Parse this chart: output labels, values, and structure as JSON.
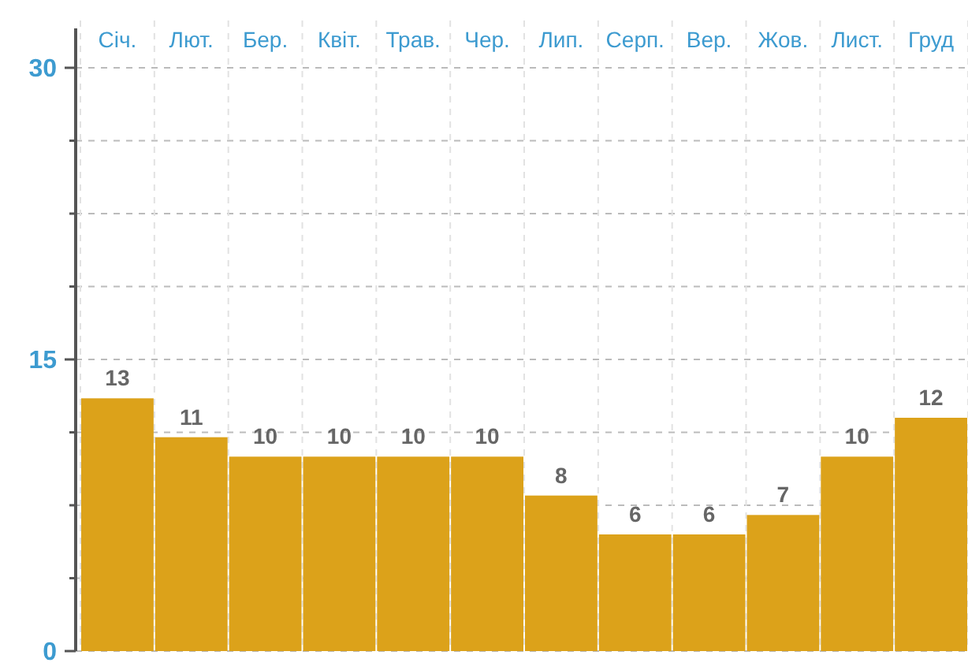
{
  "chart_data": {
    "type": "bar",
    "categories": [
      "Січ.",
      "Лют.",
      "Бер.",
      "Квіт.",
      "Трав.",
      "Чер.",
      "Лип.",
      "Серп.",
      "Вер.",
      "Жов.",
      "Лист.",
      "Груд"
    ],
    "series": [
      {
        "color": "#dca21a",
        "values": [
          13,
          11,
          10,
          10,
          10,
          10,
          8,
          6,
          6,
          7,
          10,
          12
        ]
      }
    ],
    "ylim": [
      0,
      30
    ],
    "yticks": [
      0,
      {
        "value": 3.75,
        "label": null
      },
      {
        "value": 7.5,
        "label": null
      },
      {
        "value": 11.25,
        "label": null
      },
      15,
      {
        "value": 18.75,
        "label": null
      },
      {
        "value": 22.5,
        "label": null
      },
      {
        "value": 26.25,
        "label": null
      },
      30
    ],
    "grid": true,
    "data_labels": true
  }
}
